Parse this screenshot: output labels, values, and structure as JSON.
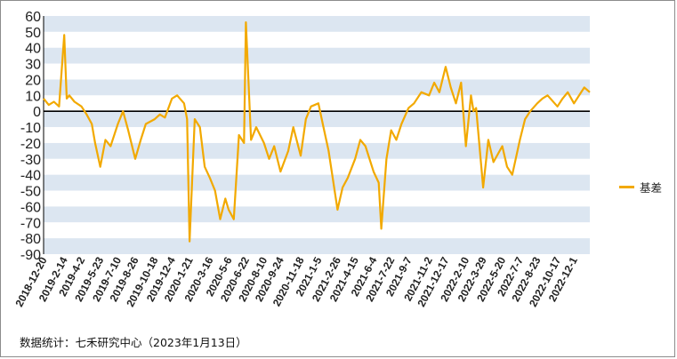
{
  "chart_data": {
    "type": "line",
    "ylim": [
      -90,
      60
    ],
    "yticks": [
      60,
      50,
      40,
      30,
      20,
      10,
      0,
      -10,
      -20,
      -30,
      -40,
      -50,
      -60,
      -70,
      -80,
      -90
    ],
    "x_tick_labels": [
      "2018-12-20",
      "2019-2-14",
      "2019-4-2",
      "2019-5-23",
      "2019-7-10",
      "2019-8-26",
      "2019-10-18",
      "2019-12-4",
      "2020-1-21",
      "2020-3-16",
      "2020-5-6",
      "2020-6-22",
      "2020-8-10",
      "2020-9-24",
      "2020-11-18",
      "2021-1-5",
      "2021-2-26",
      "2021-4-15",
      "2021-6-4",
      "2021-7-22",
      "2021-9-7",
      "2021-11-2",
      "2021-12-17",
      "2022-2-10",
      "2022-3-29",
      "2022-5-20",
      "2022-7-7",
      "2022-8-23",
      "2022-10-17",
      "2022-12-1"
    ],
    "grid": "horizontal bands",
    "legend_position": "right",
    "series": [
      {
        "name": "基差",
        "color": "#f2a900",
        "x": [
          "2018-12-20",
          "2019-1-3",
          "2019-1-17",
          "2019-1-31",
          "2019-2-14",
          "2019-2-21",
          "2019-2-28",
          "2019-3-14",
          "2019-4-2",
          "2019-4-16",
          "2019-4-30",
          "2019-5-9",
          "2019-5-23",
          "2019-6-6",
          "2019-6-20",
          "2019-7-10",
          "2019-7-24",
          "2019-8-7",
          "2019-8-26",
          "2019-9-10",
          "2019-9-24",
          "2019-10-18",
          "2019-11-1",
          "2019-11-15",
          "2019-12-4",
          "2019-12-18",
          "2020-1-6",
          "2020-1-14",
          "2020-1-21",
          "2020-2-4",
          "2020-2-18",
          "2020-3-2",
          "2020-3-16",
          "2020-3-30",
          "2020-4-13",
          "2020-4-27",
          "2020-5-6",
          "2020-5-20",
          "2020-6-3",
          "2020-6-17",
          "2020-6-22",
          "2020-7-6",
          "2020-7-20",
          "2020-8-10",
          "2020-8-24",
          "2020-9-7",
          "2020-9-24",
          "2020-10-15",
          "2020-10-29",
          "2020-11-18",
          "2020-12-2",
          "2020-12-16",
          "2021-1-5",
          "2021-1-19",
          "2021-2-2",
          "2021-2-26",
          "2021-3-12",
          "2021-3-26",
          "2021-4-15",
          "2021-4-29",
          "2021-5-13",
          "2021-6-4",
          "2021-6-18",
          "2021-6-25",
          "2021-7-9",
          "2021-7-22",
          "2021-8-5",
          "2021-8-19",
          "2021-9-7",
          "2021-9-22",
          "2021-10-12",
          "2021-11-2",
          "2021-11-16",
          "2021-11-30",
          "2021-12-17",
          "2021-12-31",
          "2022-1-14",
          "2022-1-28",
          "2022-2-10",
          "2022-2-24",
          "2022-3-3",
          "2022-3-10",
          "2022-3-29",
          "2022-4-12",
          "2022-4-26",
          "2022-5-20",
          "2022-6-2",
          "2022-6-16",
          "2022-7-7",
          "2022-7-21",
          "2022-8-4",
          "2022-8-23",
          "2022-9-6",
          "2022-9-20",
          "2022-10-17",
          "2022-10-31",
          "2022-11-14",
          "2022-12-1",
          "2022-12-15",
          "2022-12-29",
          "2023-1-13"
        ],
        "values": [
          8,
          4,
          6,
          3,
          48,
          8,
          10,
          6,
          3,
          -2,
          -8,
          -20,
          -35,
          -18,
          -22,
          -8,
          0,
          -12,
          -30,
          -18,
          -8,
          -5,
          -2,
          -4,
          8,
          10,
          5,
          -5,
          -82,
          -5,
          -10,
          -35,
          -42,
          -50,
          -68,
          -55,
          -62,
          -68,
          -15,
          -20,
          56,
          -18,
          -10,
          -20,
          -30,
          -22,
          -38,
          -25,
          -10,
          -28,
          -5,
          3,
          5,
          -10,
          -25,
          -62,
          -48,
          -42,
          -30,
          -18,
          -22,
          -38,
          -45,
          -74,
          -30,
          -12,
          -18,
          -8,
          2,
          5,
          12,
          10,
          18,
          12,
          28,
          15,
          5,
          18,
          -22,
          10,
          0,
          2,
          -48,
          -18,
          -32,
          -22,
          -35,
          -40,
          -18,
          -5,
          0,
          5,
          8,
          10,
          3,
          8,
          12,
          5,
          10,
          15,
          12
        ]
      }
    ]
  },
  "legend": {
    "label": "基差"
  },
  "source": "数据统计：七禾研究中心（2023年1月13日）"
}
